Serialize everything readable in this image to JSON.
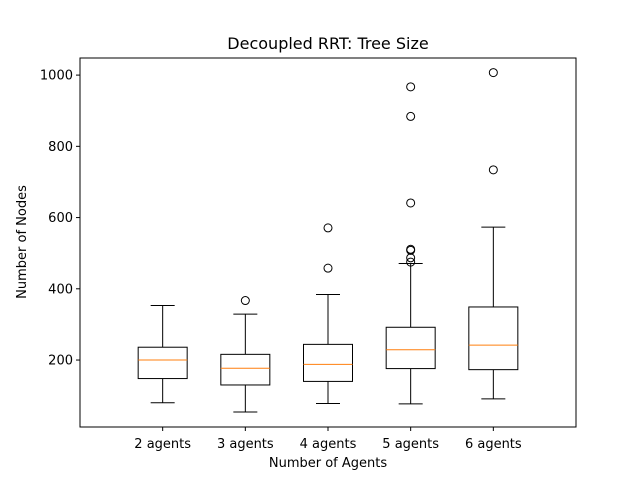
{
  "chart_data": {
    "type": "box",
    "title": "Decoupled RRT: Tree Size",
    "xlabel": "Number of Agents",
    "ylabel": "Number of Nodes",
    "ylim": [
      12,
      1048
    ],
    "yticks": [
      200,
      400,
      600,
      800,
      1000
    ],
    "grid": false,
    "categories": [
      "2 agents",
      "3 agents",
      "4 agents",
      "5 agents",
      "6 agents"
    ],
    "boxes": [
      {
        "whisker_low": 80,
        "q1": 148,
        "median": 200,
        "q3": 236,
        "whisker_high": 353,
        "outliers": []
      },
      {
        "whisker_low": 54,
        "q1": 130,
        "median": 177,
        "q3": 216,
        "whisker_high": 329,
        "outliers": [
          367
        ]
      },
      {
        "whisker_low": 78,
        "q1": 140,
        "median": 188,
        "q3": 244,
        "whisker_high": 384,
        "outliers": [
          458,
          571
        ]
      },
      {
        "whisker_low": 77,
        "q1": 176,
        "median": 229,
        "q3": 292,
        "whisker_high": 471,
        "outliers": [
          475,
          487,
          508,
          511,
          641,
          884,
          967
        ]
      },
      {
        "whisker_low": 91,
        "q1": 173,
        "median": 242,
        "q3": 349,
        "whisker_high": 573,
        "outliers": [
          734,
          1007
        ]
      }
    ],
    "colors": {
      "median": "#ff7f0e",
      "box": "#000000",
      "axes": "#000000"
    }
  }
}
